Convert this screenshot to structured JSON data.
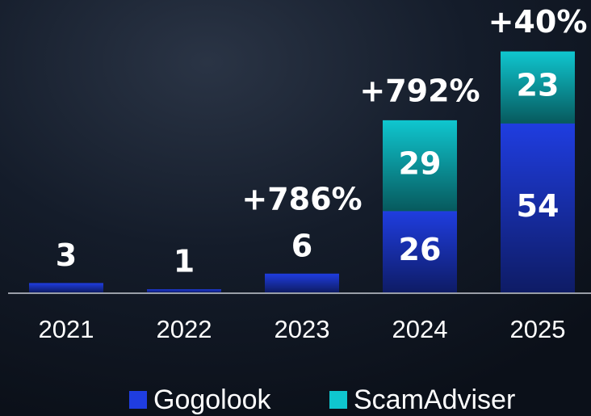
{
  "chart_data": {
    "type": "bar",
    "stacked": true,
    "categories": [
      "2021",
      "2022",
      "2023",
      "2024",
      "2025"
    ],
    "series": [
      {
        "name": "Gogolook",
        "color": "#1f3de0",
        "values": [
          3,
          1,
          6,
          26,
          54
        ]
      },
      {
        "name": "ScamAdviser",
        "color": "#0fc6cf",
        "values": [
          null,
          null,
          null,
          29,
          23
        ]
      }
    ],
    "annotations": [
      null,
      null,
      "+786%",
      "+792%",
      "+40%"
    ],
    "ylim": [
      0,
      80
    ]
  }
}
